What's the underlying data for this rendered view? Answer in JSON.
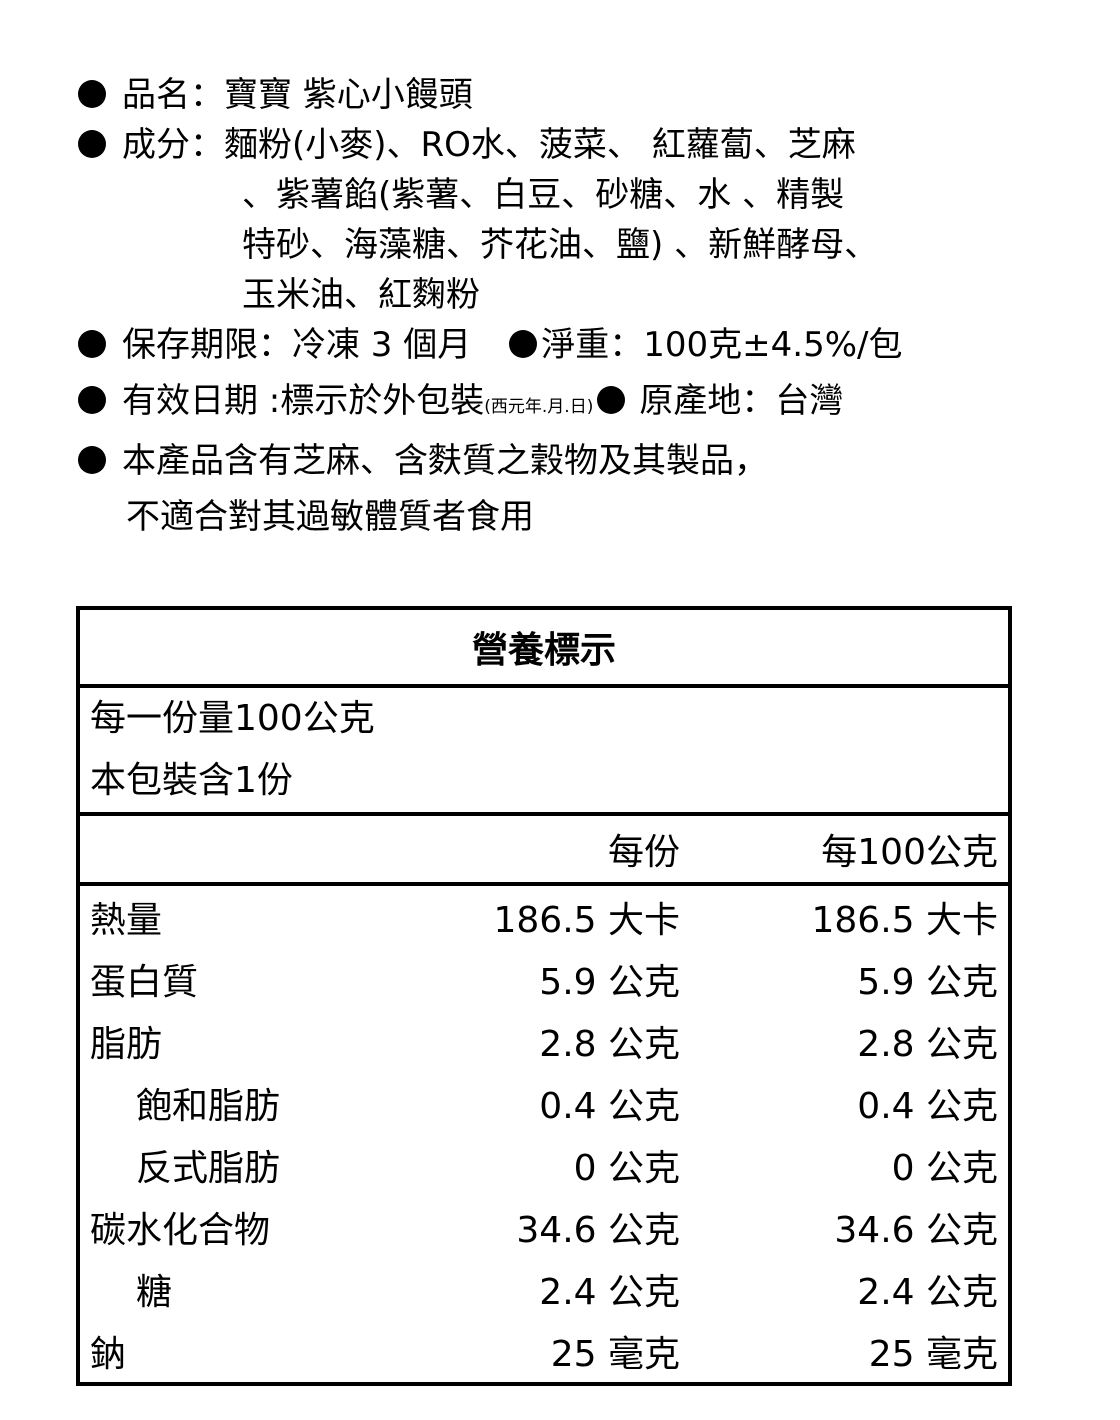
{
  "info": {
    "name_label": "品名：",
    "name_value": "寶寶 紫心小饅頭",
    "ingredients_label": "成分：",
    "ingredients_lines": [
      "麵粉(小麥)、RO水、菠菜、 紅蘿蔔、芝麻",
      "、紫薯餡(紫薯、白豆、砂糖、水 、精製",
      "特砂、海藻糖、芥花油、鹽) 、新鮮酵母、",
      "玉米油、紅麴粉"
    ],
    "shelf_life": "保存期限：冷凍 3 個月",
    "net_weight": "淨重：100克±4.5%/包",
    "expiry": "有效日期 :標示於外包裝",
    "expiry_note": "(西元年.月.日)",
    "origin": "原產地：台灣",
    "allergen_lines": [
      "本產品含有芝麻、含麩質之穀物及其製品，",
      "不適合對其過敏體質者食用"
    ]
  },
  "nutrition": {
    "title": "營養標示",
    "serving_size": "每一份量100公克",
    "servings_per_pack": "本包裝含1份",
    "col_per_serving": "每份",
    "col_per_100g": "每100公克",
    "rows": [
      {
        "name": "熱量",
        "per_serving": "186.5 大卡",
        "per_100g": "186.5 大卡",
        "indent": false
      },
      {
        "name": "蛋白質",
        "per_serving": "5.9 公克",
        "per_100g": "5.9 公克",
        "indent": false
      },
      {
        "name": "脂肪",
        "per_serving": "2.8 公克",
        "per_100g": "2.8 公克",
        "indent": false
      },
      {
        "name": "飽和脂肪",
        "per_serving": "0.4 公克",
        "per_100g": "0.4 公克",
        "indent": true
      },
      {
        "name": "反式脂肪",
        "per_serving": "0 公克",
        "per_100g": "0 公克",
        "indent": true
      },
      {
        "name": "碳水化合物",
        "per_serving": "34.6 公克",
        "per_100g": "34.6 公克",
        "indent": false
      },
      {
        "name": "糖",
        "per_serving": "2.4 公克",
        "per_100g": "2.4 公克",
        "indent": true
      },
      {
        "name": "鈉",
        "per_serving": "25 毫克",
        "per_100g": "25 毫克",
        "indent": false
      }
    ]
  }
}
